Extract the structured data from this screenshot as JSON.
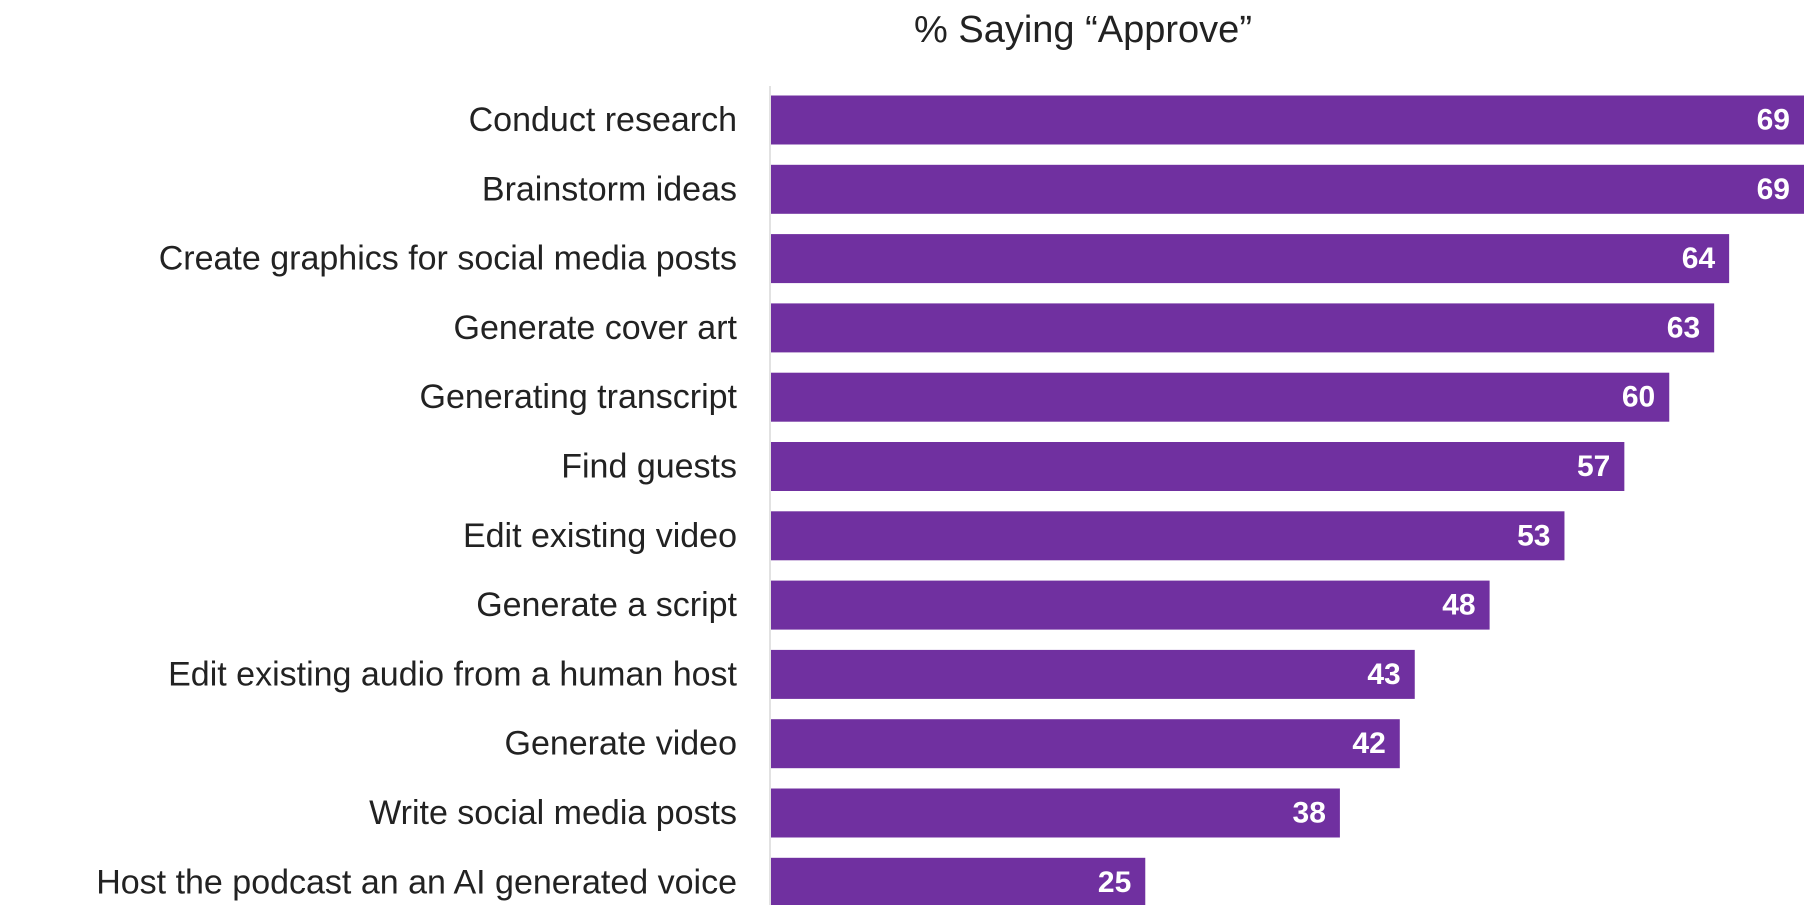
{
  "chart_data": {
    "type": "bar",
    "orientation": "horizontal",
    "title": "% Saying “Approve”",
    "categories": [
      "Conduct research",
      "Brainstorm ideas",
      "Create graphics for social media posts",
      "Generate cover art",
      "Generating transcript",
      "Find guests",
      "Edit existing video",
      "Generate a script",
      "Edit existing audio from a human host",
      "Generate video",
      "Write social media posts",
      "Host the podcast an an AI generated voice"
    ],
    "values": [
      69,
      69,
      64,
      63,
      60,
      57,
      53,
      48,
      43,
      42,
      38,
      25
    ],
    "value_labels": [
      "69",
      "69",
      "64",
      "63",
      "60",
      "57",
      "53",
      "48",
      "43",
      "42",
      "38",
      "25"
    ],
    "xlim": [
      0,
      69
    ],
    "data_labels": "inside-end",
    "grid": false,
    "bar_color": "#7030a0",
    "label_color": "#ffffff"
  }
}
